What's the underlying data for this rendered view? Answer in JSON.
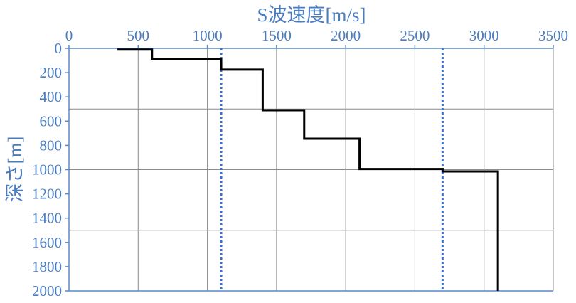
{
  "chart_data": {
    "type": "line",
    "title": "",
    "xlabel": "S波速度[m/s]",
    "ylabel": "深さ[m]",
    "xlim": [
      0,
      3500
    ],
    "ylim": [
      0,
      2000
    ],
    "y_inverted": true,
    "x_axis_position": "top",
    "x_ticks": [
      0,
      500,
      1000,
      1500,
      2000,
      2500,
      3000,
      3500
    ],
    "y_ticks": [
      0,
      200,
      400,
      600,
      800,
      1000,
      1200,
      1400,
      1600,
      1800,
      2000
    ],
    "grid": {
      "vertical_every": 500,
      "horizontal_every": 500
    },
    "series": [
      {
        "style": "step",
        "color": "#000000",
        "points": [
          [
            350,
            10
          ],
          [
            600,
            10
          ],
          [
            600,
            85
          ],
          [
            1100,
            85
          ],
          [
            1100,
            175
          ],
          [
            1400,
            175
          ],
          [
            1400,
            510
          ],
          [
            1700,
            510
          ],
          [
            1700,
            745
          ],
          [
            2100,
            745
          ],
          [
            2100,
            995
          ],
          [
            2700,
            995
          ],
          [
            2700,
            1015
          ],
          [
            3100,
            1015
          ],
          [
            3100,
            2000
          ]
        ]
      }
    ],
    "reference_lines": [
      {
        "x": 1100,
        "color": "#3a6fd0",
        "dash": "dotted"
      },
      {
        "x": 2700,
        "color": "#3a6fd0",
        "dash": "dotted"
      }
    ],
    "colors": {
      "axis_text": "#4a7cc0",
      "axis_line": "#5a88c8",
      "grid": "#8c8c8c"
    }
  }
}
